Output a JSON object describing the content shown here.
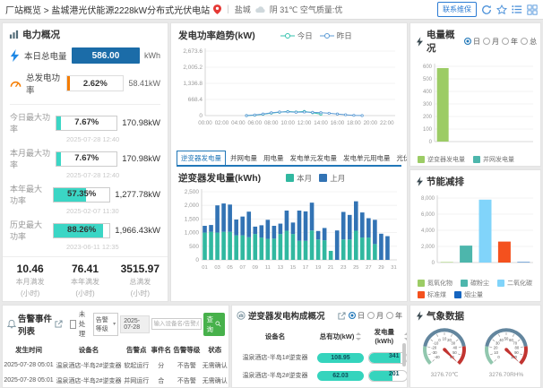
{
  "topbar": {
    "breadcrumb": "厂站概览 > 盐城港光伏能源2228kW分布式光伏电站",
    "city": "盐城",
    "weather_text": "阴 31℃ 空气质量:优",
    "contact_button": "联系维保"
  },
  "power_overview": {
    "title": "电力概况",
    "today_energy_label": "本日总电量",
    "today_energy_value": "586.00",
    "today_energy_unit": "kWh",
    "gen_power_label": "总发电功率",
    "gen_power_percent": "2.62%",
    "gen_power_value": "58.41kW",
    "max_rows": [
      {
        "label": "今日最大功率",
        "percent": "7.67%",
        "pct": 7.67,
        "value": "170.98kW",
        "time": "2025-07-28 12:40"
      },
      {
        "label": "本月最大功率",
        "percent": "7.67%",
        "pct": 7.67,
        "value": "170.98kW",
        "time": "2025-07-28 12:40"
      },
      {
        "label": "本年最大功率",
        "percent": "57.35%",
        "pct": 57.35,
        "value": "1,277.78kW",
        "time": "2025-02-07 11:30"
      },
      {
        "label": "历史最大功率",
        "percent": "88.26%",
        "pct": 88.26,
        "value": "1,966.43kW",
        "time": "2023-06-11 12:35"
      }
    ],
    "stats": [
      {
        "value": "10.46",
        "label": "本月满发",
        "unit": "(小时)"
      },
      {
        "value": "76.41",
        "label": "本年满发",
        "unit": "(小时)"
      },
      {
        "value": "3515.97",
        "label": "总满发",
        "unit": "(小时)"
      }
    ]
  },
  "tabs": {
    "items": [
      "逆变器发电量",
      "并网电量",
      "用电量",
      "发电单元发电量",
      "发电单元用电量",
      "光伏用电量"
    ],
    "active_index": 0,
    "period_options": [
      "月",
      "年"
    ],
    "period_selected": 0
  },
  "energy_overview_panel": {
    "period_options": [
      "日",
      "月",
      "年",
      "总"
    ],
    "period_selected": 0
  },
  "alarm_panel": {
    "title": "告警事件列表",
    "unhandled_label": "未处理",
    "level_select": "告警等级",
    "date_value": "2025-07-28",
    "search_placeholder": "输入设备名/告警点",
    "search_button": "查询",
    "columns": [
      "发生时间",
      "设备名",
      "告警点",
      "事件名",
      "告警等级",
      "状态"
    ],
    "rows": [
      [
        "2025-07-28 05:01",
        "温泉酒店-半岛2#逆变器",
        "软起运行",
        "分",
        "不告警",
        "无需确认"
      ],
      [
        "2025-07-28 05:01",
        "温泉酒店-半岛2#逆变器",
        "并网运行",
        "合",
        "不告警",
        "无需确认"
      ],
      [
        "2025-07-28 04:57",
        "温泉酒店-半岛4#逆变器",
        "软起运行",
        "分",
        "不告警",
        "无需确认"
      ]
    ]
  },
  "inverter_panel": {
    "title": "逆变器发电构成概况",
    "period_options": [
      "日",
      "月",
      "年"
    ],
    "period_selected": 0,
    "columns": [
      "设备名",
      "总有功(kW)",
      "发电量(kWh)"
    ],
    "rows": [
      {
        "name": "温泉酒店-半岛1#逆变器",
        "active_power": "108.95",
        "energy": "341",
        "energy_pct": 84
      },
      {
        "name": "温泉酒店-半岛2#逆变器",
        "active_power": "62.03",
        "energy": "201",
        "energy_pct": 64
      }
    ]
  },
  "weather_panel": {
    "title": "气象数据"
  },
  "chart_data": [
    {
      "id": "power-trend",
      "type": "line",
      "title": "发电功率趋势(kW)",
      "x_hours": [
        0,
        1,
        2,
        3,
        4,
        5,
        6,
        7,
        8,
        9,
        10,
        11,
        12,
        13,
        14,
        15,
        16,
        17,
        18,
        19,
        20,
        21,
        22,
        23
      ],
      "x_tick_hours": [
        0,
        2,
        4,
        6,
        8,
        10,
        12,
        14,
        16,
        18,
        20,
        22
      ],
      "x_tick_labels": [
        "00:00",
        "02:00",
        "04:00",
        "06:00",
        "08:00",
        "10:00",
        "12:00",
        "14:00",
        "16:00",
        "18:00",
        "20:00",
        "22:00"
      ],
      "ylim": [
        0,
        2673.6
      ],
      "yticks": [
        0,
        668.4,
        1336.8,
        2005.2,
        2673.6
      ],
      "ytick_labels": [
        "0",
        "668.4",
        "1,336.8",
        "2,005.2",
        "2,673.6"
      ],
      "series": [
        {
          "name": "今日",
          "color": "#35c2ae",
          "values": [
            null,
            null,
            null,
            null,
            null,
            0,
            20,
            55,
            100,
            140,
            170,
            150,
            171,
            120,
            58,
            null,
            null,
            null,
            null,
            null,
            null,
            null,
            null,
            null
          ]
        },
        {
          "name": "昨日",
          "color": "#5b9bd5",
          "values": [
            null,
            null,
            null,
            null,
            null,
            0,
            25,
            65,
            115,
            150,
            160,
            140,
            150,
            135,
            120,
            95,
            65,
            35,
            12,
            2,
            null,
            null,
            null,
            null
          ]
        }
      ]
    },
    {
      "id": "inverter-energy",
      "type": "stacked-bar",
      "title": "逆变器发电量(kWh)",
      "categories": [
        "01",
        "02",
        "03",
        "04",
        "05",
        "06",
        "07",
        "08",
        "09",
        "10",
        "11",
        "12",
        "13",
        "14",
        "15",
        "16",
        "17",
        "18",
        "19",
        "20",
        "21",
        "22",
        "23",
        "24",
        "25",
        "26",
        "27",
        "28",
        "29",
        "30",
        "31"
      ],
      "ylim": [
        0,
        2500
      ],
      "yticks": [
        0,
        500,
        1000,
        1500,
        2000,
        2500
      ],
      "ytick_labels": [
        "0",
        "500",
        "1,000",
        "1,500",
        "2,000",
        "2,500"
      ],
      "series": [
        {
          "name": "本月",
          "color": "#31b8a0",
          "values": [
            1000,
            1030,
            1000,
            1030,
            1030,
            900,
            900,
            830,
            950,
            820,
            770,
            780,
            950,
            1070,
            950,
            700,
            700,
            1080,
            750,
            720,
            330,
            0,
            750,
            750,
            1070,
            820,
            820,
            580,
            0,
            0,
            0
          ]
        },
        {
          "name": "上月",
          "color": "#3273b4",
          "values": [
            250,
            250,
            1000,
            1040,
            1000,
            580,
            690,
            940,
            270,
            450,
            700,
            470,
            380,
            740,
            420,
            1110,
            1080,
            1020,
            310,
            450,
            0,
            1080,
            1010,
            900,
            1080,
            920,
            710,
            890,
            960,
            870,
            0
          ]
        }
      ]
    },
    {
      "id": "energy-overview",
      "type": "bar",
      "title": "电量概况",
      "categories": [
        "逆变器发电量",
        "并网发电量",
        "用电量",
        "发电单元发电量",
        "发电单元用电量",
        "光伏用电量"
      ],
      "colors": [
        "#9ccc65",
        "#4db6ac",
        "#81d4fa",
        "#f4511e",
        "#1565c0",
        "#cddc39"
      ],
      "values": [
        586,
        0,
        0,
        0,
        0,
        0
      ],
      "ylim": [
        0,
        600
      ],
      "yticks": [
        0,
        100,
        200,
        300,
        400,
        500,
        600
      ],
      "ytick_labels": [
        "0",
        "100",
        "200",
        "300",
        "400",
        "500",
        "600"
      ]
    },
    {
      "id": "emission-reduction",
      "type": "bar",
      "title": "节能减排",
      "categories": [
        "氮氧化物",
        "碳粉尘",
        "二氧化碳",
        "标准煤",
        "烟尘量"
      ],
      "colors": [
        "#9ccc65",
        "#4db6ac",
        "#81d4fa",
        "#f4511e",
        "#1565c0"
      ],
      "values": [
        60,
        2100,
        7800,
        2600,
        60
      ],
      "ylim": [
        0,
        8000
      ],
      "yticks": [
        0,
        2000,
        4000,
        6000,
        8000
      ],
      "ytick_labels": [
        "0",
        "2,000",
        "4,000",
        "6,000",
        "8,000"
      ]
    },
    {
      "id": "weather-gauges",
      "type": "gauge",
      "gauges": [
        {
          "label": "3276.70℃",
          "min": -40,
          "max": 60,
          "tick_step": 10
        },
        {
          "label": "3276.70RH%",
          "min": 0,
          "max": 100,
          "tick_step": 10
        }
      ]
    }
  ]
}
